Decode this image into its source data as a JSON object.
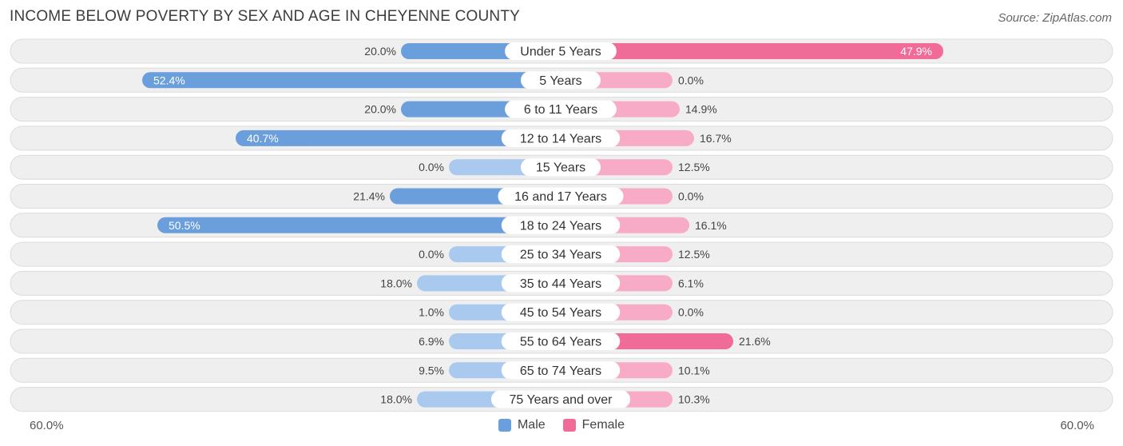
{
  "title": "INCOME BELOW POVERTY BY SEX AND AGE IN CHEYENNE COUNTY",
  "source": "Source: ZipAtlas.com",
  "axis": {
    "left_label": "60.0%",
    "right_label": "60.0%"
  },
  "legend": {
    "male": "Male",
    "female": "Female"
  },
  "colors": {
    "male_dark": "#6a9fdc",
    "male_light": "#a9c9ee",
    "female_dark": "#f06b97",
    "female_light": "#f8abc6",
    "row_bg": "#efefef",
    "row_border": "#dcdcdc"
  },
  "chart_data": {
    "type": "bar",
    "orientation": "horizontal-diverging",
    "title": "INCOME BELOW POVERTY BY SEX AND AGE IN CHEYENNE COUNTY",
    "categories": [
      "Under 5 Years",
      "5 Years",
      "6 to 11 Years",
      "12 to 14 Years",
      "15 Years",
      "16 and 17 Years",
      "18 to 24 Years",
      "25 to 34 Years",
      "35 to 44 Years",
      "45 to 54 Years",
      "55 to 64 Years",
      "65 to 74 Years",
      "75 Years and over"
    ],
    "series": [
      {
        "name": "Male",
        "values": [
          20.0,
          52.4,
          20.0,
          40.7,
          0.0,
          21.4,
          50.5,
          0.0,
          18.0,
          1.0,
          6.9,
          9.5,
          18.0
        ],
        "labels": [
          "20.0%",
          "52.4%",
          "20.0%",
          "40.7%",
          "0.0%",
          "21.4%",
          "50.5%",
          "0.0%",
          "18.0%",
          "1.0%",
          "6.9%",
          "9.5%",
          "18.0%"
        ]
      },
      {
        "name": "Female",
        "values": [
          47.9,
          0.0,
          14.9,
          16.7,
          12.5,
          0.0,
          16.1,
          12.5,
          6.1,
          0.0,
          21.6,
          10.1,
          10.3
        ],
        "labels": [
          "47.9%",
          "0.0%",
          "14.9%",
          "16.7%",
          "12.5%",
          "0.0%",
          "16.1%",
          "12.5%",
          "6.1%",
          "0.0%",
          "21.6%",
          "10.1%",
          "10.3%"
        ]
      }
    ],
    "xlim": [
      -60,
      60
    ],
    "grid": false,
    "legend_position": "bottom-center"
  }
}
